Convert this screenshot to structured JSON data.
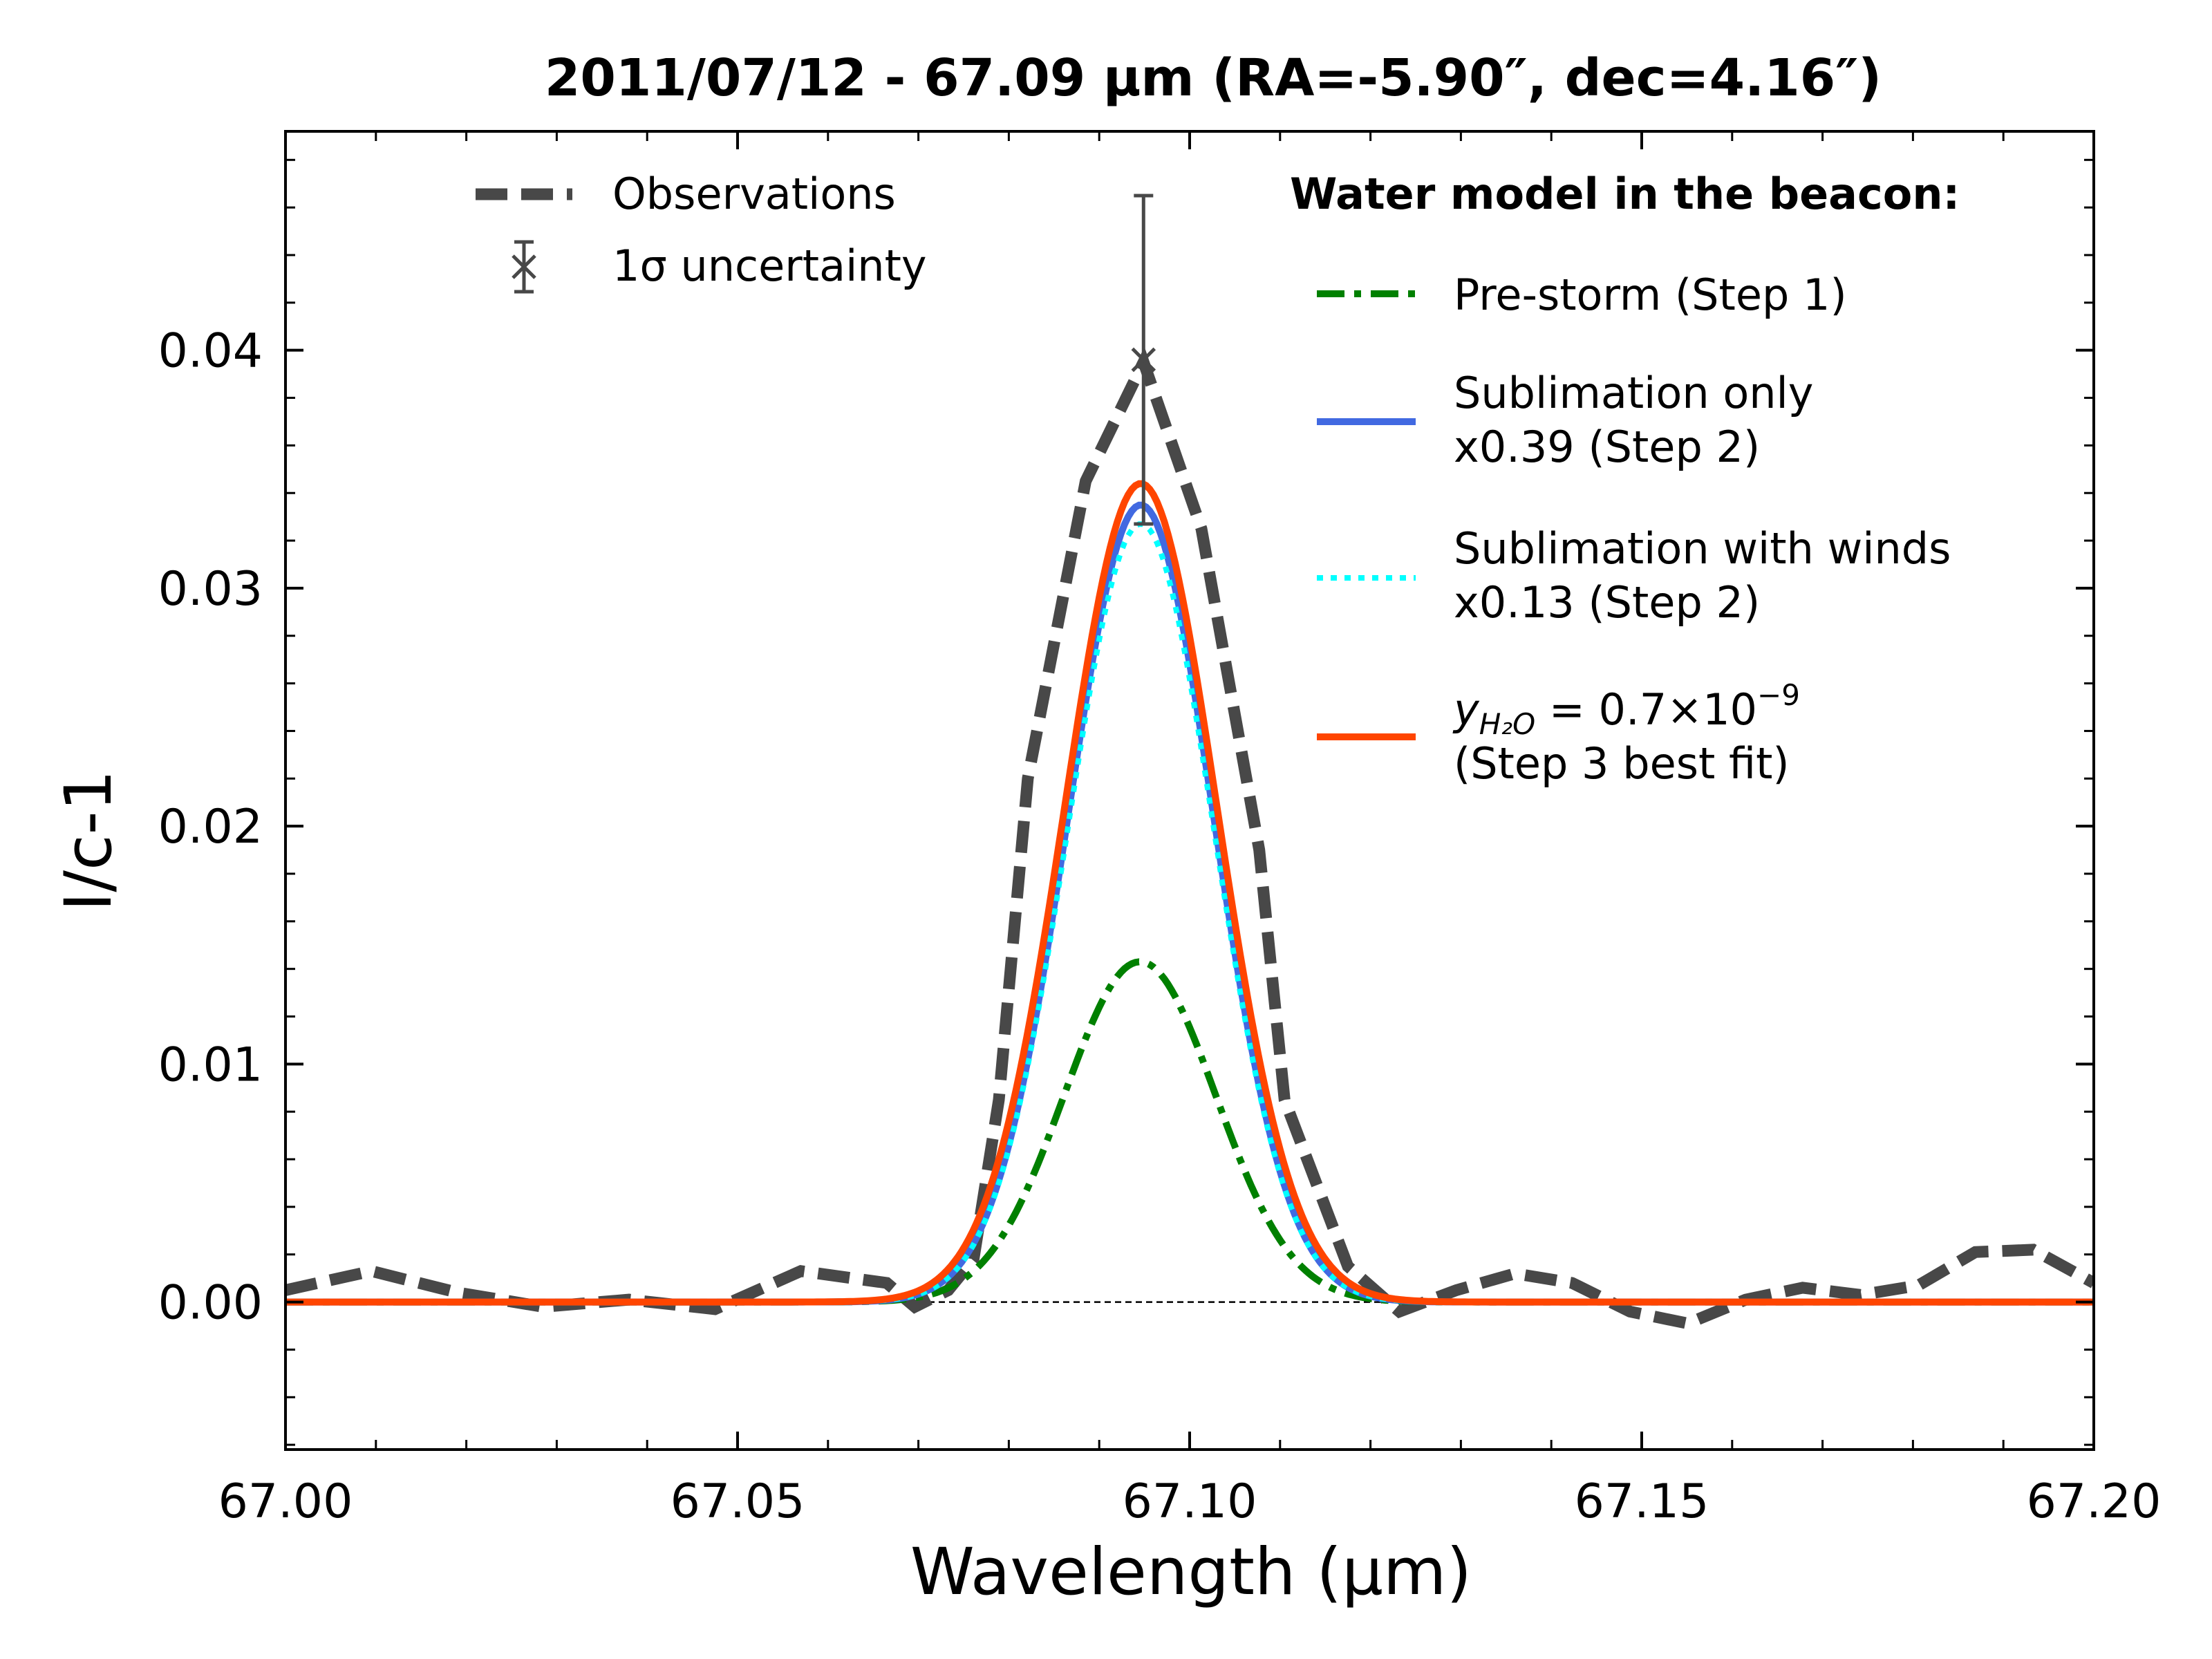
{
  "chart_data": {
    "type": "line",
    "title": "2011/07/12 - 67.09 µm (RA=-5.90″, dec=4.16″)",
    "xlabel": "Wavelength (μm)",
    "ylabel": "I/c-1",
    "xlim": [
      67.0,
      67.2
    ],
    "ylim": [
      -0.0062,
      0.0492
    ],
    "x_ticks": [
      67.0,
      67.05,
      67.1,
      67.15,
      67.2
    ],
    "x_tick_labels": [
      "67.00",
      "67.05",
      "67.10",
      "67.15",
      "67.20"
    ],
    "y_ticks": [
      0.0,
      0.01,
      0.02,
      0.03,
      0.04
    ],
    "y_tick_labels": [
      "0.00",
      "0.01",
      "0.02",
      "0.03",
      "0.04"
    ],
    "zero_line": 0.0,
    "legend_position": "top",
    "legend_obs": [
      {
        "key": "observations",
        "label": "Observations"
      },
      {
        "key": "uncertainty",
        "label": "1σ uncertainty"
      }
    ],
    "legend_model_title": "Water model in the beacon:",
    "observations": {
      "name": "Observations",
      "color": "#484848",
      "x": [
        67.0,
        67.0095,
        67.019,
        67.0285,
        67.038,
        67.0475,
        67.057,
        67.0665,
        67.0696,
        67.0733,
        67.0761,
        67.0789,
        67.0821,
        67.0885,
        67.0949,
        67.1013,
        67.1077,
        67.1105,
        67.1175,
        67.1232,
        67.1295,
        67.136,
        67.1423,
        67.1487,
        67.1551,
        67.1615,
        67.1678,
        67.1742,
        67.1806,
        67.1869,
        67.1933,
        67.2
      ],
      "y": [
        0.0005,
        0.0013,
        0.0004,
        -0.0002,
        0.0001,
        -0.0003,
        0.0013,
        0.0008,
        -0.0002,
        0.0005,
        0.0018,
        0.0085,
        0.022,
        0.0345,
        0.0395,
        0.0325,
        0.019,
        0.0085,
        0.0015,
        -0.0004,
        0.0005,
        0.0012,
        0.0008,
        -0.0004,
        -0.0009,
        0.0001,
        0.0006,
        0.0003,
        0.0007,
        0.0021,
        0.0022,
        0.0008
      ]
    },
    "uncertainty": {
      "name": "1σ uncertainty",
      "x": 67.0949,
      "y": 0.0396,
      "yerr": 0.0069,
      "color": "#484848"
    },
    "models": [
      {
        "key": "prestorm",
        "name": "Pre-storm (Step 1)",
        "label_lines": [
          "Pre-storm (Step 1)"
        ],
        "color": "#008000",
        "style": "dashdot",
        "center": 67.0945,
        "amplitude": 0.0143,
        "sigma": 0.0084
      },
      {
        "key": "sublimation",
        "name": "Sublimation only x0.39 (Step 2)",
        "label_lines": [
          "Sublimation only",
          "x0.39 (Step 2)"
        ],
        "color": "#4169e1",
        "style": "solid",
        "center": 67.0946,
        "amplitude": 0.0335,
        "sigma": 0.0081
      },
      {
        "key": "winds",
        "name": "Sublimation with winds x0.13 (Step 2)",
        "label_lines": [
          "Sublimation with winds",
          "x0.13 (Step 2)"
        ],
        "color": "#00ffff",
        "style": "dotted",
        "center": 67.0946,
        "amplitude": 0.0327,
        "sigma": 0.0081
      },
      {
        "key": "bestfit",
        "name": "y_H2O = 0.7×10^-9 (Step 3 best fit)",
        "label_lines": [
          "y",
          "(Step 3 best fit)"
        ],
        "label_formula": {
          "var": "y",
          "sub": "H₂O",
          "eq": " = 0.7×10",
          "sup": "−9"
        },
        "color": "#ff4500",
        "style": "solid",
        "center": 67.0946,
        "amplitude": 0.0344,
        "sigma": 0.0084
      }
    ]
  }
}
